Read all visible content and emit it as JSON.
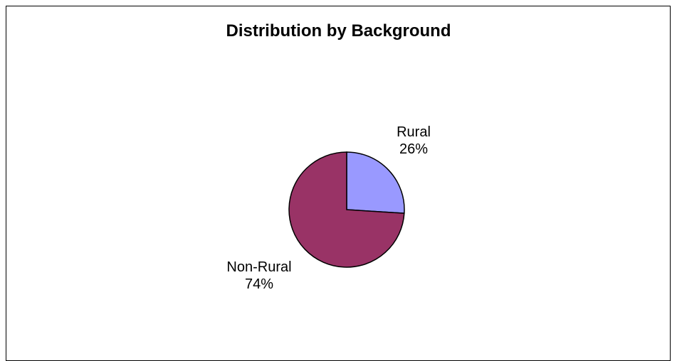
{
  "chart_data": {
    "type": "pie",
    "title": "Distribution by Background",
    "slices": [
      {
        "label": "Rural",
        "value": 26,
        "value_label": "26%",
        "color": "#9999FF"
      },
      {
        "label": "Non-Rural",
        "value": 74,
        "value_label": "74%",
        "color": "#993366"
      }
    ],
    "start": "12 o'clock",
    "direction": "clockwise",
    "slice_border_color": "#000000",
    "legend": "none"
  }
}
